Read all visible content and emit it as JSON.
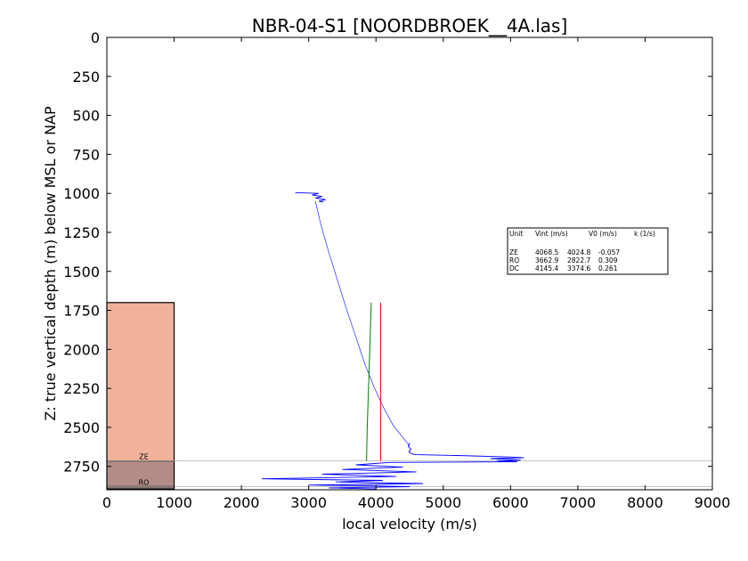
{
  "chart_data": {
    "type": "line",
    "title": "NBR-04-S1 [NOORDBROEK__4A.las]",
    "xlabel": "local velocity (m/s)",
    "ylabel": "Z: true vertical depth (m) below MSL or NAP",
    "xlim": [
      0,
      9000
    ],
    "ylim": [
      2900,
      0
    ],
    "x_ticks": [
      0,
      1000,
      2000,
      3000,
      4000,
      5000,
      6000,
      7000,
      8000,
      9000
    ],
    "y_ticks": [
      0,
      250,
      500,
      750,
      1000,
      1250,
      1500,
      1750,
      2000,
      2250,
      2500,
      2750
    ],
    "grid": false,
    "formations": [
      {
        "label": "",
        "top": 1700,
        "bottom": 2715,
        "color": "#f1b29c"
      },
      {
        "label": "ZE",
        "top": 2715,
        "bottom": 2880,
        "color": "#b48c87"
      },
      {
        "label": "RO",
        "top": 2880,
        "bottom": 2895,
        "color": "#9c7a76"
      }
    ],
    "horizon_lines": [
      2715,
      2880
    ],
    "series": [
      {
        "name": "",
        "color": "#0000ff",
        "style": "thin-curve",
        "x": [
          3100,
          3180,
          3300,
          3430,
          3560,
          3700,
          3840,
          3980,
          4120,
          4260,
          4390,
          4500
        ],
        "z": [
          1050,
          1200,
          1380,
          1560,
          1740,
          1920,
          2100,
          2250,
          2380,
          2490,
          2560,
          2620
        ]
      },
      {
        "name": "",
        "color": "#0000ff",
        "style": "noisy",
        "x": [
          2800,
          3150,
          3050,
          3200,
          3100,
          3250,
          3150,
          3220
        ],
        "z": [
          995,
          1000,
          1010,
          1020,
          1030,
          1040,
          1050,
          1055
        ]
      },
      {
        "name": "",
        "color": "#0000ff",
        "style": "noisy",
        "x": [
          4500,
          4480,
          4520,
          4490,
          4530,
          4600,
          5200,
          6000,
          6200,
          5700,
          6150,
          5800,
          6100,
          4200,
          3700,
          4400,
          3500,
          4600,
          3200,
          4300,
          2300,
          4100,
          3400,
          4700,
          3000,
          3900,
          4500,
          3300,
          4000
        ],
        "z": [
          2600,
          2620,
          2640,
          2655,
          2670,
          2675,
          2680,
          2690,
          2695,
          2700,
          2710,
          2715,
          2720,
          2725,
          2740,
          2755,
          2770,
          2785,
          2800,
          2815,
          2830,
          2840,
          2850,
          2860,
          2870,
          2875,
          2880,
          2888,
          2895
        ]
      },
      {
        "name": "",
        "color": "#008000",
        "style": "line",
        "x": [
          3930,
          3900,
          3870,
          3860
        ],
        "z": [
          1700,
          2100,
          2500,
          2715
        ]
      },
      {
        "name": "",
        "color": "#ff0000",
        "style": "line",
        "x": [
          4069,
          4069
        ],
        "z": [
          1700,
          2715
        ]
      }
    ],
    "legend_table": {
      "headers": [
        "Unit",
        "Vint (m/s)",
        "V0 (m/s)",
        "k (1/s)"
      ],
      "rows": [
        [
          "ZE",
          "4068.5",
          "4024.8",
          "-0.057"
        ],
        [
          "RO",
          "3662.9",
          "2822.7",
          "0.309"
        ],
        [
          "DC",
          "4145.4",
          "3374.6",
          "0.261"
        ]
      ],
      "placement": "right"
    }
  }
}
